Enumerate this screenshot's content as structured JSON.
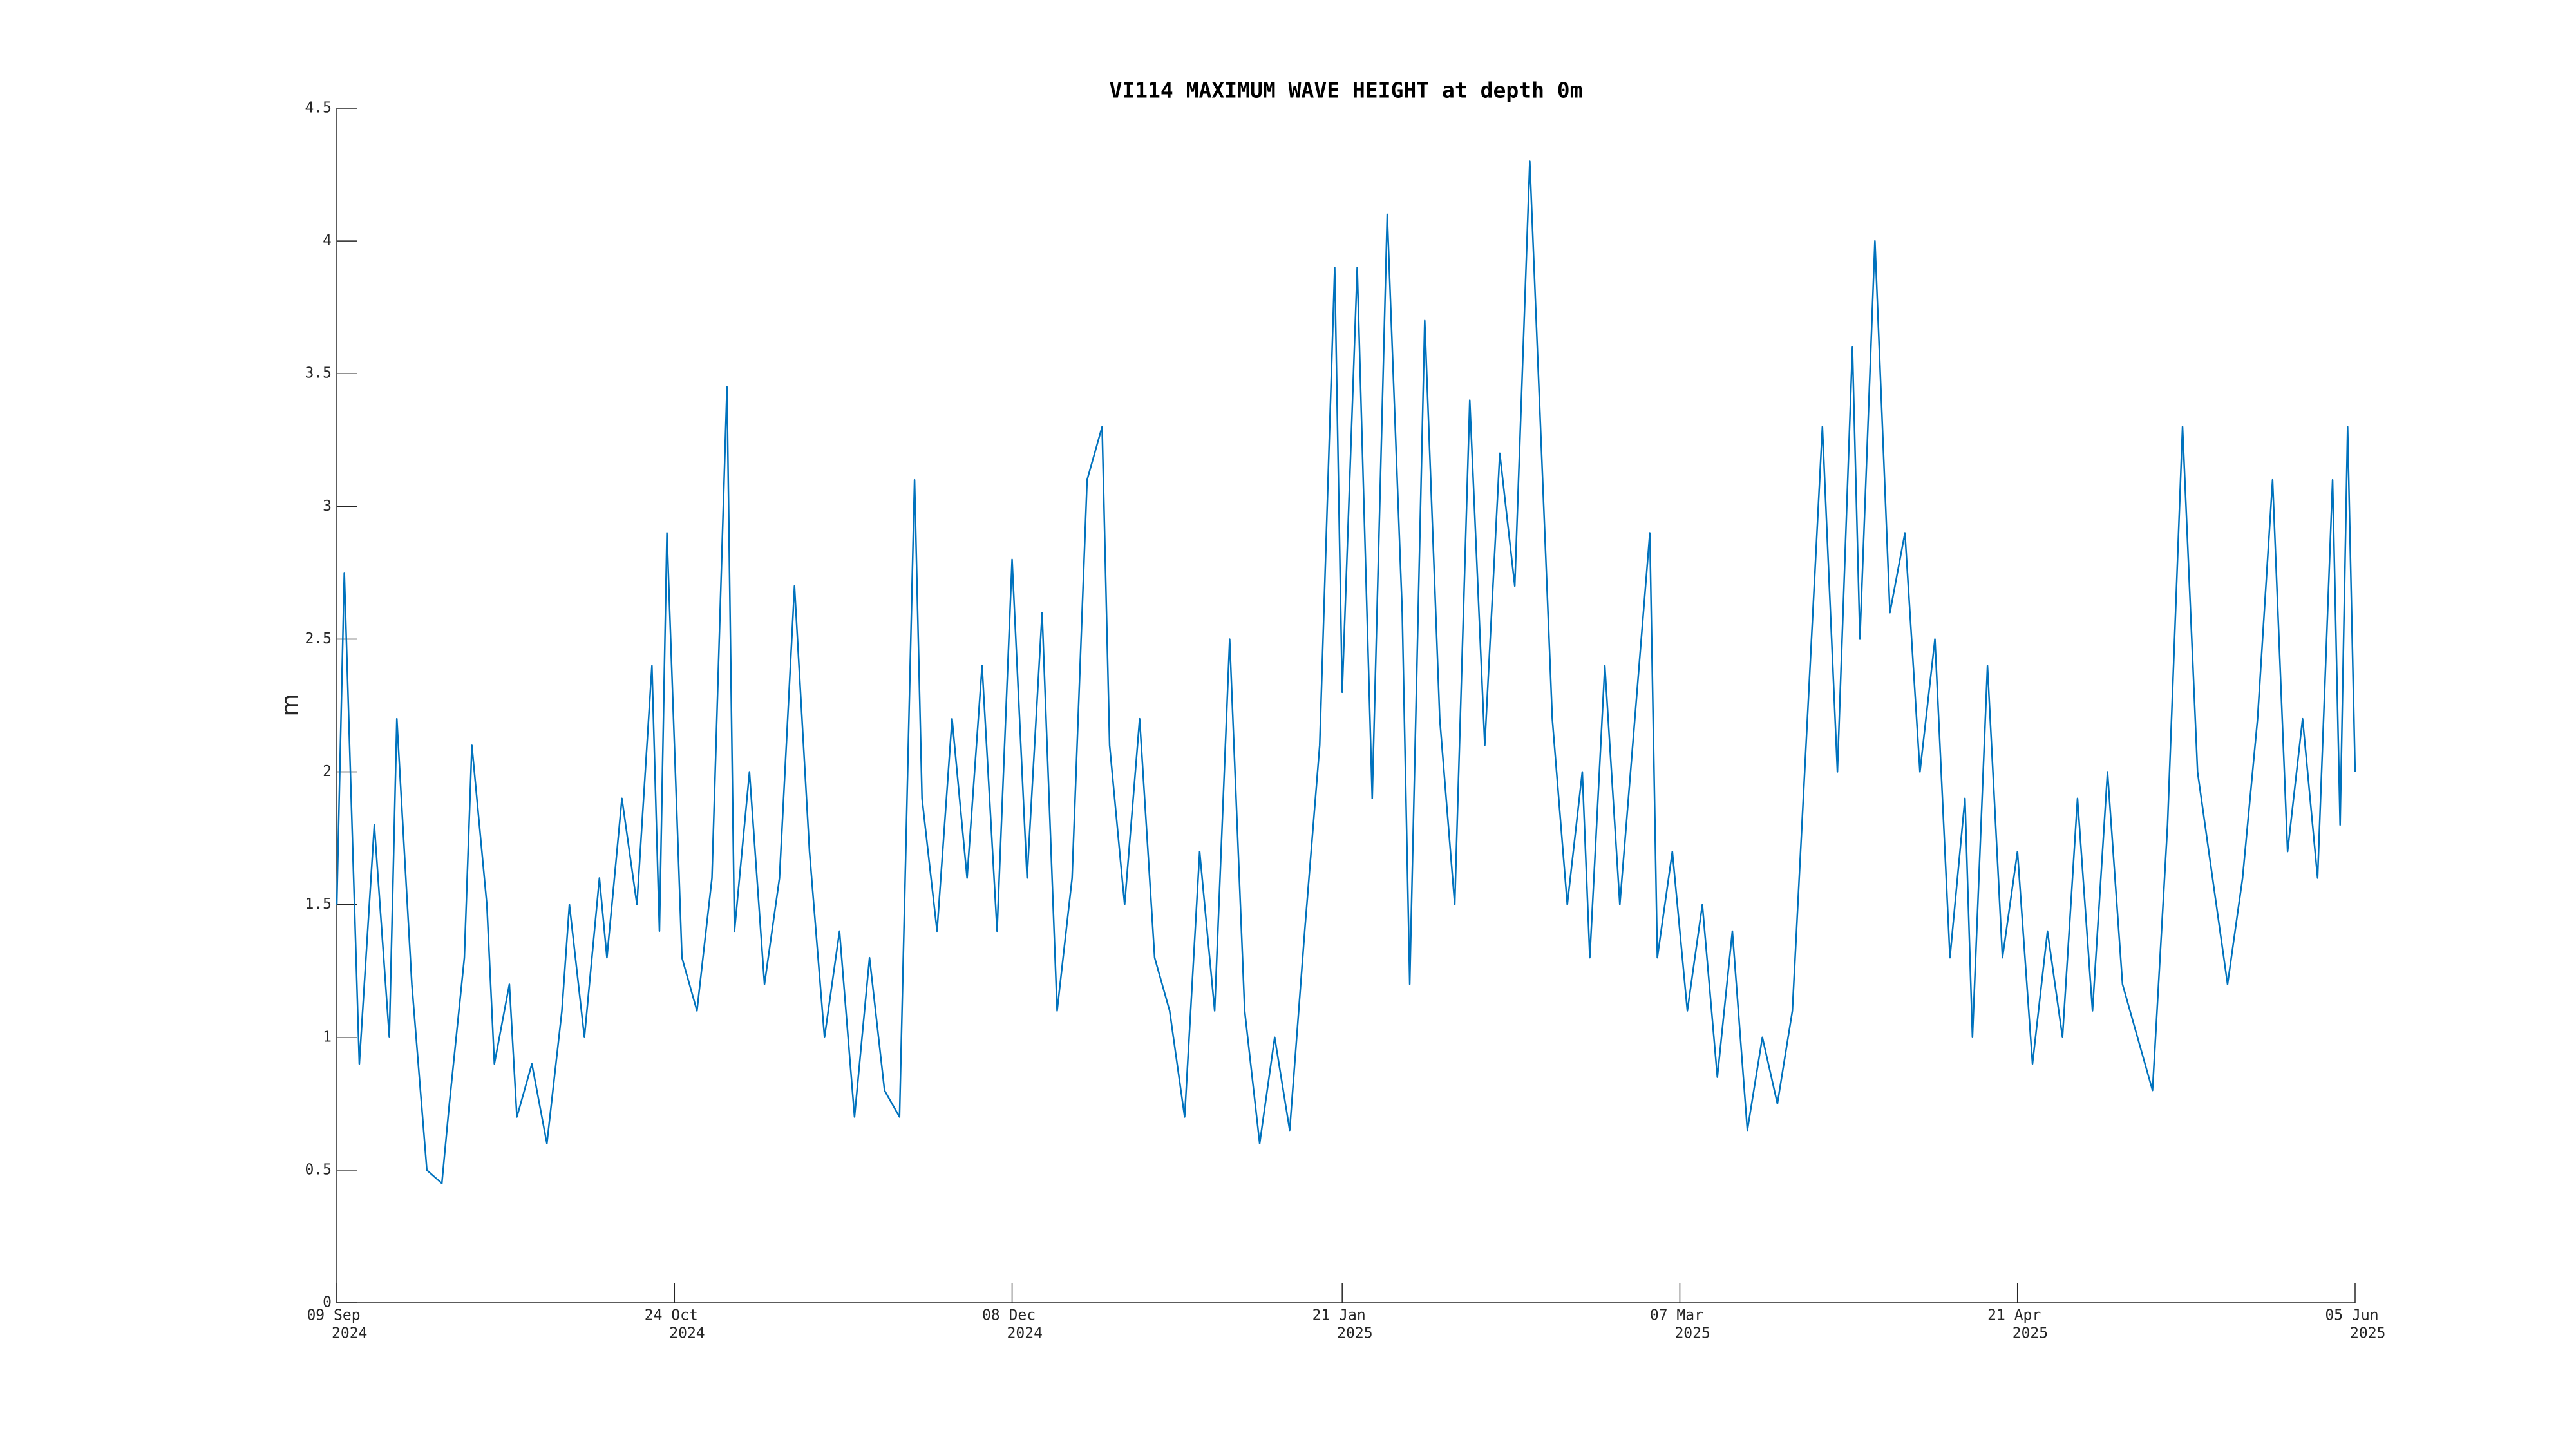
{
  "chart_data": {
    "type": "line",
    "title": "VI114 MAXIMUM WAVE HEIGHT at depth 0m",
    "ylabel": "m",
    "color": "#0072bd",
    "grid": false,
    "xlim": [
      "2024-09-09",
      "2025-06-05"
    ],
    "xticks": [
      {
        "value": "2024-09-09",
        "label": [
          "09 Sep",
          "2024"
        ]
      },
      {
        "value": "2024-10-24",
        "label": [
          "24 Oct",
          "2024"
        ]
      },
      {
        "value": "2024-12-08",
        "label": [
          "08 Dec",
          "2024"
        ]
      },
      {
        "value": "2025-01-21",
        "label": [
          "21 Jan",
          "2025"
        ]
      },
      {
        "value": "2025-03-07",
        "label": [
          "07 Mar",
          "2025"
        ]
      },
      {
        "value": "2025-04-21",
        "label": [
          "21 Apr",
          "2025"
        ]
      },
      {
        "value": "2025-06-05",
        "label": [
          "05 Jun",
          "2025"
        ]
      }
    ],
    "ylim": [
      0,
      4.5
    ],
    "yticks": [
      0,
      0.5,
      1,
      1.5,
      2,
      2.5,
      3,
      3.5,
      4,
      4.5
    ],
    "x": [
      "2024-09-09",
      "2024-09-10",
      "2024-09-12",
      "2024-09-14",
      "2024-09-16",
      "2024-09-17",
      "2024-09-19",
      "2024-09-21",
      "2024-09-23",
      "2024-09-24",
      "2024-09-26",
      "2024-09-27",
      "2024-09-29",
      "2024-09-30",
      "2024-10-02",
      "2024-10-03",
      "2024-10-05",
      "2024-10-07",
      "2024-10-09",
      "2024-10-10",
      "2024-10-12",
      "2024-10-14",
      "2024-10-15",
      "2024-10-17",
      "2024-10-19",
      "2024-10-21",
      "2024-10-22",
      "2024-10-23",
      "2024-10-25",
      "2024-10-27",
      "2024-10-29",
      "2024-10-31",
      "2024-11-01",
      "2024-11-03",
      "2024-11-05",
      "2024-11-07",
      "2024-11-09",
      "2024-11-11",
      "2024-11-13",
      "2024-11-15",
      "2024-11-17",
      "2024-11-19",
      "2024-11-21",
      "2024-11-23",
      "2024-11-25",
      "2024-11-26",
      "2024-11-28",
      "2024-11-30",
      "2024-12-02",
      "2024-12-04",
      "2024-12-06",
      "2024-12-08",
      "2024-12-10",
      "2024-12-12",
      "2024-12-14",
      "2024-12-16",
      "2024-12-18",
      "2024-12-20",
      "2024-12-21",
      "2024-12-23",
      "2024-12-25",
      "2024-12-27",
      "2024-12-29",
      "2024-12-31",
      "2025-01-02",
      "2025-01-04",
      "2025-01-06",
      "2025-01-08",
      "2025-01-10",
      "2025-01-12",
      "2025-01-14",
      "2025-01-16",
      "2025-01-18",
      "2025-01-20",
      "2025-01-21",
      "2025-01-23",
      "2025-01-25",
      "2025-01-27",
      "2025-01-29",
      "2025-01-30",
      "2025-02-01",
      "2025-02-03",
      "2025-02-05",
      "2025-02-07",
      "2025-02-09",
      "2025-02-11",
      "2025-02-13",
      "2025-02-15",
      "2025-02-17",
      "2025-02-18",
      "2025-02-20",
      "2025-02-22",
      "2025-02-23",
      "2025-02-25",
      "2025-02-27",
      "2025-03-01",
      "2025-03-03",
      "2025-03-04",
      "2025-03-06",
      "2025-03-08",
      "2025-03-10",
      "2025-03-12",
      "2025-03-14",
      "2025-03-16",
      "2025-03-18",
      "2025-03-20",
      "2025-03-22",
      "2025-03-24",
      "2025-03-26",
      "2025-03-28",
      "2025-03-30",
      "2025-03-31",
      "2025-04-02",
      "2025-04-04",
      "2025-04-06",
      "2025-04-08",
      "2025-04-10",
      "2025-04-12",
      "2025-04-14",
      "2025-04-15",
      "2025-04-17",
      "2025-04-19",
      "2025-04-21",
      "2025-04-23",
      "2025-04-25",
      "2025-04-27",
      "2025-04-29",
      "2025-05-01",
      "2025-05-03",
      "2025-05-05",
      "2025-05-07",
      "2025-05-09",
      "2025-05-11",
      "2025-05-13",
      "2025-05-15",
      "2025-05-17",
      "2025-05-19",
      "2025-05-21",
      "2025-05-23",
      "2025-05-25",
      "2025-05-27",
      "2025-05-29",
      "2025-05-31",
      "2025-06-02",
      "2025-06-03",
      "2025-06-04",
      "2025-06-05"
    ],
    "values": [
      1.5,
      2.75,
      0.9,
      1.8,
      1.0,
      2.2,
      1.2,
      0.5,
      0.45,
      0.75,
      1.3,
      2.1,
      1.5,
      0.9,
      1.2,
      0.7,
      0.9,
      0.6,
      1.1,
      1.5,
      1.0,
      1.6,
      1.3,
      1.9,
      1.5,
      2.4,
      1.4,
      2.9,
      1.3,
      1.1,
      1.6,
      3.45,
      1.4,
      2.0,
      1.2,
      1.6,
      2.7,
      1.7,
      1.0,
      1.4,
      0.7,
      1.3,
      0.8,
      0.7,
      3.1,
      1.9,
      1.4,
      2.2,
      1.6,
      2.4,
      1.4,
      2.8,
      1.6,
      2.6,
      1.1,
      1.6,
      3.1,
      3.3,
      2.1,
      1.5,
      2.2,
      1.3,
      1.1,
      0.7,
      1.7,
      1.1,
      2.5,
      1.1,
      0.6,
      1.0,
      0.65,
      1.4,
      2.1,
      3.9,
      2.3,
      3.9,
      1.9,
      4.1,
      2.6,
      1.2,
      3.7,
      2.2,
      1.5,
      3.4,
      2.1,
      3.2,
      2.7,
      4.3,
      2.9,
      2.2,
      1.5,
      2.0,
      1.3,
      2.4,
      1.5,
      2.2,
      2.9,
      1.3,
      1.7,
      1.1,
      1.5,
      0.85,
      1.4,
      0.65,
      1.0,
      0.75,
      1.1,
      2.2,
      3.3,
      2.0,
      3.6,
      2.5,
      4.0,
      2.6,
      2.9,
      2.0,
      2.5,
      1.3,
      1.9,
      1.0,
      2.4,
      1.3,
      1.7,
      0.9,
      1.4,
      1.0,
      1.9,
      1.1,
      2.0,
      1.2,
      1.0,
      0.8,
      1.8,
      3.3,
      2.0,
      1.6,
      1.2,
      1.6,
      2.2,
      3.1,
      1.7,
      2.2,
      1.6,
      3.1,
      1.8,
      3.3,
      2.0
    ]
  }
}
